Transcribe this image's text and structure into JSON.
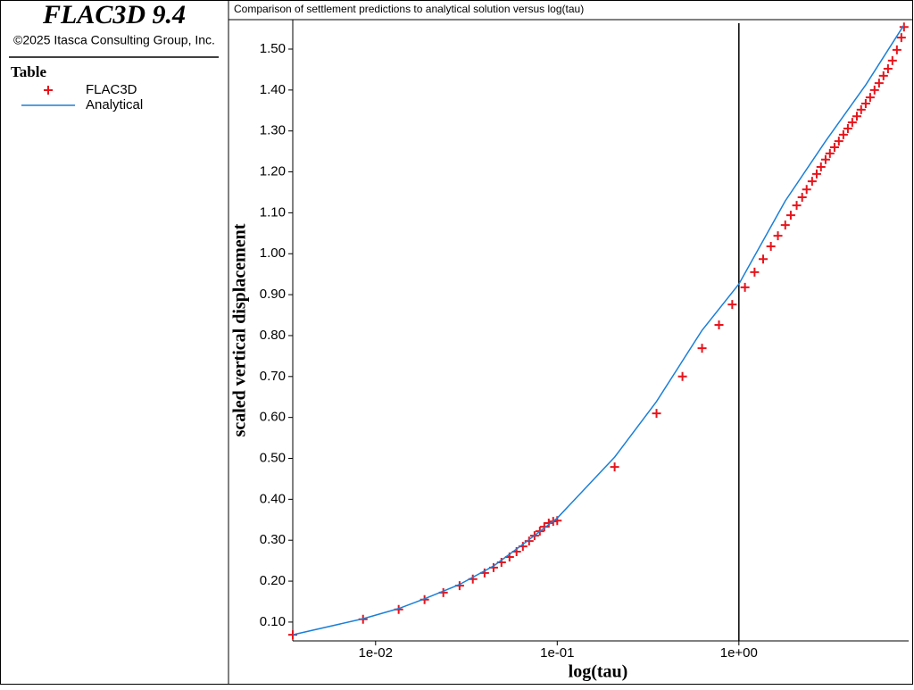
{
  "app": {
    "product": "FLAC3D 9.4",
    "copyright": "©2025 Itasca Consulting Group, Inc.",
    "legend_heading": "Table"
  },
  "chart_data": {
    "type": "scatter",
    "title": "Comparison of settlement predictions to analytical solution versus log(tau)",
    "x_label": "log(tau)",
    "y_label": "scaled vertical displacement",
    "xscale": "log",
    "xlim": [
      0.0035,
      8.6
    ],
    "ylim": [
      0.054,
      1.572
    ],
    "xticks": [
      {
        "value": 0.01,
        "label": "1e-02"
      },
      {
        "value": 0.1,
        "label": "1e-01"
      },
      {
        "value": 1,
        "label": "1e+00"
      }
    ],
    "yticks": [
      {
        "value": 0.1,
        "label": "0.10"
      },
      {
        "value": 0.2,
        "label": "0.20"
      },
      {
        "value": 0.3,
        "label": "0.30"
      },
      {
        "value": 0.4,
        "label": "0.40"
      },
      {
        "value": 0.5,
        "label": "0.50"
      },
      {
        "value": 0.6,
        "label": "0.60"
      },
      {
        "value": 0.7,
        "label": "0.70"
      },
      {
        "value": 0.8,
        "label": "0.80"
      },
      {
        "value": 0.9,
        "label": "0.90"
      },
      {
        "value": 1.0,
        "label": "1.00"
      },
      {
        "value": 1.1,
        "label": "1.10"
      },
      {
        "value": 1.2,
        "label": "1.20"
      },
      {
        "value": 1.3,
        "label": "1.30"
      },
      {
        "value": 1.4,
        "label": "1.40"
      },
      {
        "value": 1.5,
        "label": "1.50"
      }
    ],
    "vline": 1,
    "series": [
      {
        "name": "FLAC3D",
        "color": "#e8141c",
        "style": "marker",
        "x": [
          0.0035,
          0.00853,
          0.0134,
          0.0186,
          0.0236,
          0.029,
          0.0343,
          0.0398,
          0.0446,
          0.0493,
          0.0546,
          0.0597,
          0.0647,
          0.07,
          0.075,
          0.0802,
          0.0849,
          0.0898,
          0.095,
          0.1,
          0.207,
          0.352,
          0.489,
          0.627,
          0.777,
          0.919,
          1.08,
          1.22,
          1.36,
          1.5,
          1.64,
          1.8,
          1.93,
          2.08,
          2.23,
          2.36,
          2.53,
          2.68,
          2.83,
          3.0,
          3.17,
          3.36,
          3.55,
          3.76,
          3.98,
          4.21,
          4.46,
          4.71,
          4.99,
          5.28,
          5.58,
          5.91,
          6.25,
          6.62,
          7.0,
          7.41,
          7.84,
          8.11
        ],
        "values": [
          0.069,
          0.107,
          0.131,
          0.155,
          0.172,
          0.189,
          0.205,
          0.22,
          0.233,
          0.246,
          0.259,
          0.272,
          0.285,
          0.298,
          0.311,
          0.322,
          0.333,
          0.342,
          0.346,
          0.348,
          0.479,
          0.61,
          0.7,
          0.769,
          0.826,
          0.876,
          0.918,
          0.955,
          0.987,
          1.018,
          1.044,
          1.07,
          1.094,
          1.118,
          1.138,
          1.157,
          1.177,
          1.195,
          1.212,
          1.23,
          1.245,
          1.26,
          1.275,
          1.291,
          1.306,
          1.321,
          1.336,
          1.352,
          1.367,
          1.382,
          1.4,
          1.417,
          1.435,
          1.452,
          1.472,
          1.498,
          1.528,
          1.554
        ]
      },
      {
        "name": "Analytical",
        "color": "#1a7fd8",
        "style": "line",
        "x": [
          0.0035,
          0.0085,
          0.0134,
          0.0186,
          0.029,
          0.0446,
          0.0647,
          0.1,
          0.207,
          0.352,
          0.627,
          1.0,
          1.8,
          3.0,
          5.0,
          8.11
        ],
        "values": [
          0.069,
          0.108,
          0.133,
          0.157,
          0.192,
          0.237,
          0.29,
          0.354,
          0.503,
          0.639,
          0.813,
          0.926,
          1.129,
          1.275,
          1.413,
          1.559
        ]
      }
    ]
  }
}
